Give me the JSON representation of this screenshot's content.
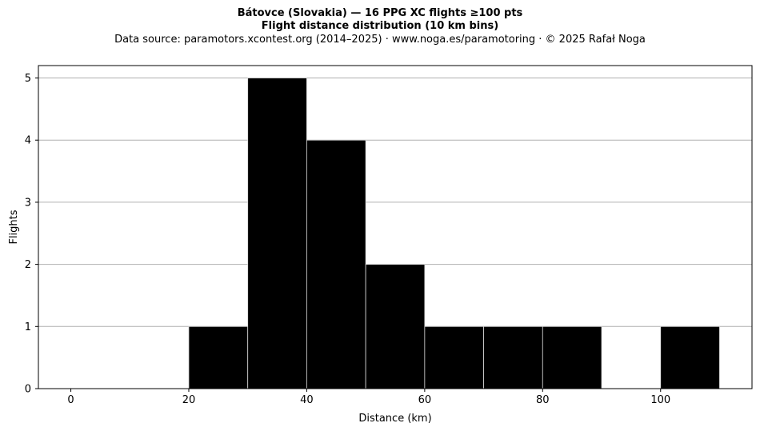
{
  "chart_data": {
    "type": "bar",
    "title_line1": "Bátovce (Slovakia)  —  16 PPG XC flights ≥100 pts",
    "title_line2": "Flight distance distribution (10 km bins)",
    "subtitle": "Data source: paramotors.xcontest.org (2014–2025)  ·  www.noga.es/paramotoring  ·  © 2025 Rafał Noga",
    "xlabel": "Distance (km)",
    "ylabel": "Flights",
    "xlim": [
      -5.5,
      115.5
    ],
    "ylim": [
      0,
      5.2
    ],
    "xticks": [
      "0",
      "20",
      "40",
      "60",
      "80",
      "100"
    ],
    "xtick_values": [
      0,
      20,
      40,
      60,
      80,
      100
    ],
    "yticks": [
      "0",
      "1",
      "2",
      "3",
      "4",
      "5"
    ],
    "ytick_values": [
      0,
      1,
      2,
      3,
      4,
      5
    ],
    "grid": "y",
    "bins": [
      {
        "x0": 20,
        "x1": 30,
        "count": 1
      },
      {
        "x0": 30,
        "x1": 40,
        "count": 5
      },
      {
        "x0": 40,
        "x1": 50,
        "count": 4
      },
      {
        "x0": 50,
        "x1": 60,
        "count": 2
      },
      {
        "x0": 60,
        "x1": 70,
        "count": 1
      },
      {
        "x0": 70,
        "x1": 80,
        "count": 1
      },
      {
        "x0": 80,
        "x1": 90,
        "count": 1
      },
      {
        "x0": 100,
        "x1": 110,
        "count": 1
      }
    ],
    "bar_color": "#000000",
    "bar_edge_color": "#d8d8d8",
    "grid_color": "#b0b0b0"
  }
}
